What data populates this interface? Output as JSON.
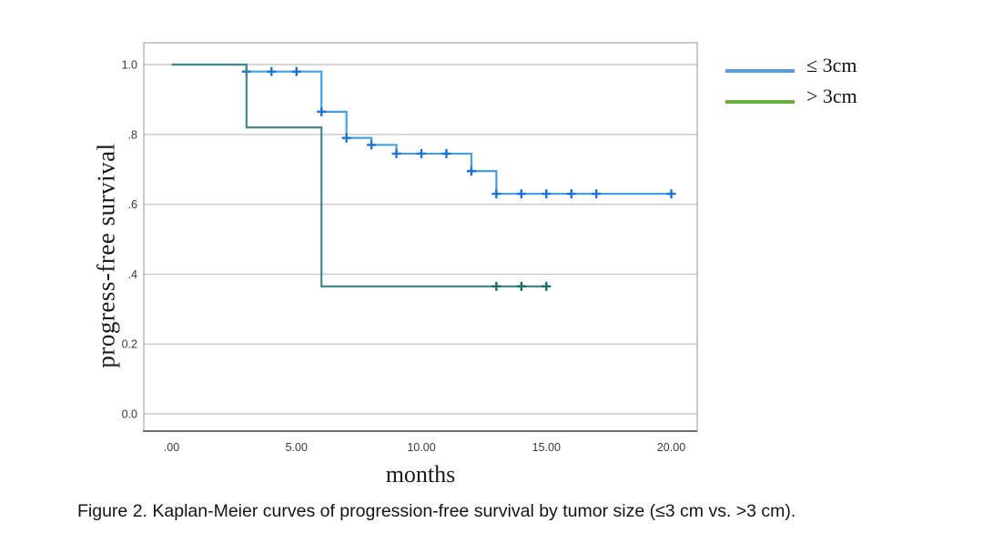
{
  "figure": {
    "caption": "Figure 2. Kaplan-Meier curves of progression-free survival by tumor size (≤3 cm vs. >3 cm)."
  },
  "chart_data": {
    "type": "line",
    "subtype": "kaplan-meier-step",
    "title": "",
    "xlabel": "months",
    "ylabel": "progress-free survival",
    "xlim": [
      -1.1,
      21.0
    ],
    "ylim": [
      -0.05,
      1.06
    ],
    "grid": "horizontal",
    "legend_position": "top-right-outside",
    "xticks": {
      "values": [
        0,
        5,
        10,
        15,
        20
      ],
      "labels": [
        ".00",
        "5.00",
        "10.00",
        "15.00",
        "20.00"
      ]
    },
    "yticks": {
      "values": [
        0,
        0.2,
        0.4,
        0.6,
        0.8,
        1.0
      ],
      "labels": [
        "0.0",
        "0.2",
        ".4",
        ".6",
        ".8",
        "1.0"
      ]
    },
    "series": [
      {
        "name": "≤ 3cm",
        "id": "le3cm",
        "color": "#44a0e3",
        "censor_color": "#1b74d4",
        "legend_color": "#5b9bd5",
        "steps": [
          [
            0,
            1.0
          ],
          [
            3,
            0.98
          ],
          [
            6,
            0.865
          ],
          [
            7,
            0.79
          ],
          [
            8,
            0.77
          ],
          [
            9,
            0.745
          ],
          [
            12,
            0.695
          ],
          [
            13,
            0.63
          ]
        ],
        "end_time": 20,
        "censors": [
          [
            3,
            0.98
          ],
          [
            4,
            0.98
          ],
          [
            5,
            0.98
          ],
          [
            6,
            0.865
          ],
          [
            7,
            0.79
          ],
          [
            8,
            0.77
          ],
          [
            9,
            0.745
          ],
          [
            10,
            0.745
          ],
          [
            11,
            0.745
          ],
          [
            12,
            0.695
          ],
          [
            13,
            0.63
          ],
          [
            14,
            0.63
          ],
          [
            15,
            0.63
          ],
          [
            16,
            0.63
          ],
          [
            17,
            0.63
          ],
          [
            20,
            0.63
          ]
        ]
      },
      {
        "name": "> 3cm",
        "id": "gt3cm",
        "color": "#47898a",
        "censor_color": "#1a6e62",
        "legend_color": "#6aad47",
        "steps": [
          [
            0,
            1.0
          ],
          [
            3,
            0.82
          ],
          [
            6,
            0.365
          ]
        ],
        "end_time": 15,
        "censors": [
          [
            13,
            0.365
          ],
          [
            14,
            0.365
          ],
          [
            15,
            0.365
          ]
        ]
      }
    ]
  }
}
